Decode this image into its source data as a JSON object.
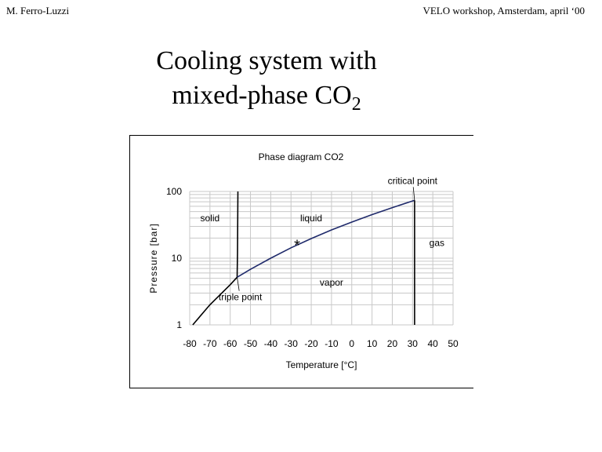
{
  "header": {
    "author": "M. Ferro-Luzzi",
    "event": "VELO workshop, Amsterdam, april ‘00"
  },
  "slide": {
    "title_line1": "Cooling system with",
    "title_line2_main": "mixed-phase CO",
    "title_line2_sub": "2"
  },
  "chart_data": {
    "type": "line",
    "title": "Phase diagram CO2",
    "xlabel": "Temperature [°C]",
    "ylabel": "Pressure [bar]",
    "xlim": [
      -80,
      50
    ],
    "ylim": [
      1,
      100
    ],
    "yscale": "log",
    "grid": true,
    "x_ticks": [
      "-80",
      "-70",
      "-60",
      "-50",
      "-40",
      "-30",
      "-20",
      "-10",
      "0",
      "10",
      "20",
      "30",
      "40",
      "50"
    ],
    "y_ticks": [
      "1",
      "10",
      "100"
    ],
    "series": [
      {
        "key": "sublimation",
        "color": "#000000",
        "points": [
          [
            -78.5,
            1.0
          ],
          [
            -70,
            2.0
          ],
          [
            -60,
            4.0
          ],
          [
            -56.6,
            5.18
          ]
        ]
      },
      {
        "key": "melting",
        "color": "#000000",
        "points": [
          [
            -56.6,
            5.18
          ],
          [
            -56.4,
            12
          ],
          [
            -56.2,
            100
          ]
        ]
      },
      {
        "key": "vaporization",
        "color": "#1f2a6b",
        "points": [
          [
            -56.6,
            5.18
          ],
          [
            -50,
            6.8
          ],
          [
            -40,
            10.0
          ],
          [
            -30,
            14.3
          ],
          [
            -20,
            19.7
          ],
          [
            -10,
            26.5
          ],
          [
            0,
            34.8
          ],
          [
            10,
            45.0
          ],
          [
            20,
            57.3
          ],
          [
            31.0,
            73.8
          ]
        ]
      },
      {
        "key": "critical-isotherm",
        "color": "#000000",
        "points": [
          [
            31.0,
            1.0
          ],
          [
            31.0,
            73.8
          ]
        ]
      }
    ],
    "operating_point": {
      "x": -27,
      "y": 16,
      "color": "#cc3300"
    },
    "annotations": [
      {
        "text": "solid",
        "x": -70,
        "y": 40
      },
      {
        "text": "liquid",
        "x": -20,
        "y": 40
      },
      {
        "text": "gas",
        "x": 42,
        "y": 17
      },
      {
        "text": "vapor",
        "x": -10,
        "y": 4.3
      },
      {
        "text": "triple point",
        "x": -55,
        "y": 2.6,
        "arrow_to": [
          -56.6,
          5.18
        ]
      },
      {
        "text": "critical point",
        "x": 30,
        "y": 145,
        "arrow_to": [
          31.0,
          73.8
        ]
      }
    ]
  }
}
